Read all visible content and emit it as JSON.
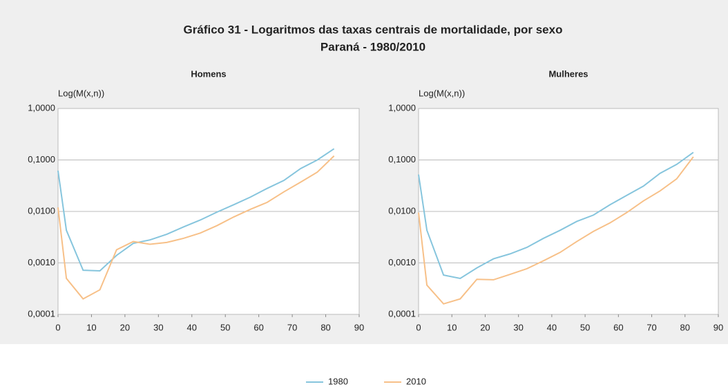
{
  "title": "Gráfico 31 - Logaritmos das taxas centrais de mortalidade, por sexo",
  "subtitle": "Paraná - 1980/2010",
  "chart_data": [
    {
      "type": "line",
      "title": "Homens",
      "y_label": "Log(M(x,n))",
      "log_y": true,
      "grid": true,
      "x": [
        0,
        2.5,
        7.5,
        12.5,
        17.5,
        22.5,
        27.5,
        32.5,
        37.5,
        42.5,
        47.5,
        52.5,
        57.5,
        62.5,
        67.5,
        72.5,
        77.5,
        82.5
      ],
      "xlim": [
        0,
        90
      ],
      "xticks": [
        0,
        10,
        20,
        30,
        40,
        50,
        60,
        70,
        80,
        90
      ],
      "ylim": [
        0.0001,
        1
      ],
      "yticks": [
        {
          "value": 0.0001,
          "label": "0,0001"
        },
        {
          "value": 0.001,
          "label": "0,0010"
        },
        {
          "value": 0.01,
          "label": "0,0100"
        },
        {
          "value": 0.1,
          "label": "0,1000"
        },
        {
          "value": 1,
          "label": "1,0000"
        }
      ],
      "series": [
        {
          "name": "1980",
          "color": "#86c5dd",
          "values": [
            0.062,
            0.0043,
            0.00072,
            0.0007,
            0.0014,
            0.0024,
            0.0028,
            0.0036,
            0.005,
            0.0068,
            0.0097,
            0.0135,
            0.019,
            0.028,
            0.04,
            0.068,
            0.1,
            0.165
          ]
        },
        {
          "name": "2010",
          "color": "#f7c088",
          "values": [
            0.012,
            0.0005,
            0.0002,
            0.0003,
            0.0018,
            0.0026,
            0.0023,
            0.0025,
            0.003,
            0.0038,
            0.0053,
            0.0078,
            0.011,
            0.015,
            0.024,
            0.037,
            0.058,
            0.12
          ]
        }
      ]
    },
    {
      "type": "line",
      "title": "Mulheres",
      "y_label": "Log(M(x,n))",
      "log_y": true,
      "grid": true,
      "x": [
        0,
        2.5,
        7.5,
        12.5,
        17.5,
        22.5,
        27.5,
        32.5,
        37.5,
        42.5,
        47.5,
        52.5,
        57.5,
        62.5,
        67.5,
        72.5,
        77.5,
        82.5
      ],
      "xlim": [
        0,
        90
      ],
      "xticks": [
        0,
        10,
        20,
        30,
        40,
        50,
        60,
        70,
        80,
        90
      ],
      "ylim": [
        0.0001,
        1
      ],
      "yticks": [
        {
          "value": 0.0001,
          "label": "0,0001"
        },
        {
          "value": 0.001,
          "label": "0,0010"
        },
        {
          "value": 0.01,
          "label": "0,0100"
        },
        {
          "value": 0.1,
          "label": "0,1000"
        },
        {
          "value": 1,
          "label": "1,0000"
        }
      ],
      "series": [
        {
          "color": "#86c5dd",
          "values": [
            0.052,
            0.0043,
            0.00058,
            0.0005,
            0.0008,
            0.0012,
            0.0015,
            0.002,
            0.003,
            0.0043,
            0.0064,
            0.0085,
            0.0135,
            0.0205,
            0.031,
            0.055,
            0.082,
            0.14
          ]
        },
        {
          "color": "#f7c088",
          "values": [
            0.0095,
            0.00037,
            0.00016,
            0.0002,
            0.00048,
            0.00047,
            0.0006,
            0.00077,
            0.0011,
            0.0016,
            0.0026,
            0.0041,
            0.006,
            0.0095,
            0.016,
            0.025,
            0.043,
            0.115
          ]
        }
      ]
    }
  ]
}
